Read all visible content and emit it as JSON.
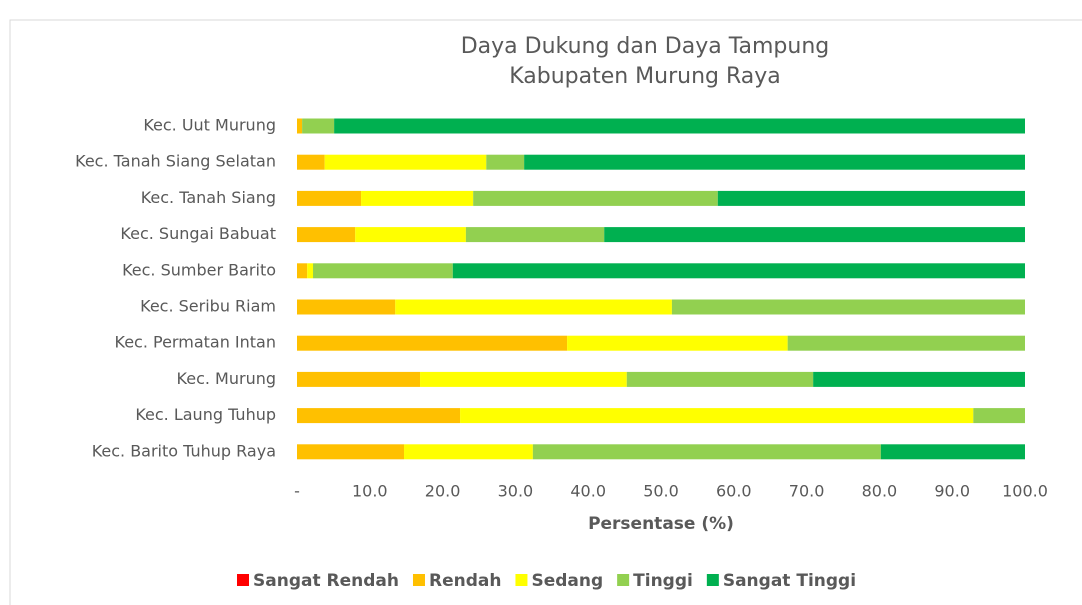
{
  "chart_data": {
    "type": "stacked_bar_horizontal",
    "title": "Daya Dukung dan Daya Tampung",
    "subtitle": "Kabupaten Murung Raya",
    "x_label": "Persentase (%)",
    "categories": [
      "Kec. Uut Murung",
      "Kec. Tanah Siang Selatan",
      "Kec. Tanah Siang",
      "Kec. Sungai Babuat",
      "Kec. Sumber Barito",
      "Kec. Seribu Riam",
      "Kec. Permatan Intan",
      "Kec. Murung",
      "Kec. Laung Tuhup",
      "Kec. Barito Tuhup Raya"
    ],
    "series": [
      {
        "name": "Sangat Rendah",
        "color": "#ff0000",
        "values": [
          0,
          0,
          0,
          0,
          0,
          0,
          0,
          0,
          0,
          0
        ]
      },
      {
        "name": "Rendah",
        "color": "#ffc000",
        "values": [
          0.7,
          3.8,
          8.8,
          8.0,
          1.4,
          13.5,
          37.1,
          16.9,
          22.4,
          14.7
        ]
      },
      {
        "name": "Sedang",
        "color": "#ffff00",
        "values": [
          0,
          22.2,
          15.4,
          15.2,
          0.8,
          38.0,
          30.3,
          28.4,
          70.5,
          17.7
        ]
      },
      {
        "name": "Tinggi",
        "color": "#92d050",
        "values": [
          4.4,
          5.2,
          33.6,
          19.0,
          19.2,
          48.5,
          32.6,
          25.6,
          7.1,
          47.8
        ]
      },
      {
        "name": "Sangat Tinggi",
        "color": "#00b050",
        "values": [
          94.9,
          68.8,
          42.2,
          57.8,
          78.6,
          0,
          0,
          29.1,
          0,
          19.8
        ]
      }
    ],
    "xlim": [
      0,
      100
    ],
    "xticks": [
      {
        "value": 0,
        "label": "-"
      },
      {
        "value": 10,
        "label": "10.0"
      },
      {
        "value": 20,
        "label": "20.0"
      },
      {
        "value": 30,
        "label": "30.0"
      },
      {
        "value": 40,
        "label": "40.0"
      },
      {
        "value": 50,
        "label": "50.0"
      },
      {
        "value": 60,
        "label": "60.0"
      },
      {
        "value": 70,
        "label": "70.0"
      },
      {
        "value": 80,
        "label": "80.0"
      },
      {
        "value": 90,
        "label": "90.0"
      },
      {
        "value": 100,
        "label": "100.0"
      }
    ],
    "legend": "bottom"
  }
}
